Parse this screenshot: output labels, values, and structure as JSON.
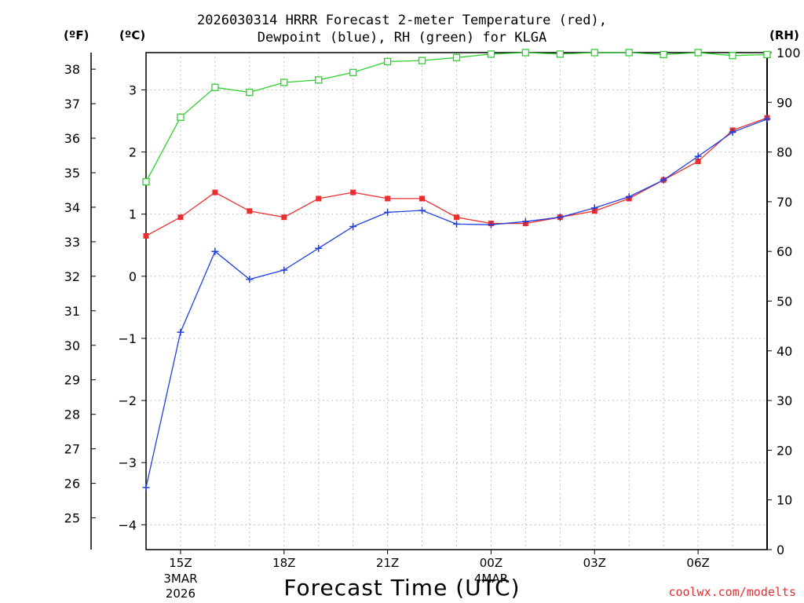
{
  "chart_data": {
    "type": "line",
    "title_line1": "2026030314 HRRR Forecast 2-meter Temperature (red),",
    "title_line2": "Dewpoint (blue), RH (green) for KLGA",
    "xlabel": "Forecast Time (UTC)",
    "credit": "coolwx.com/modelts",
    "units": {
      "fahrenheit": "(ºF)",
      "celsius": "(ºC)",
      "rh": "(RH)"
    },
    "x_hours": [
      14,
      15,
      16,
      17,
      18,
      19,
      20,
      21,
      22,
      23,
      24,
      25,
      26,
      27,
      28,
      29,
      30,
      31,
      32
    ],
    "xlim": [
      14,
      32
    ],
    "x_ticks": [
      {
        "hour": 15,
        "label": "15Z",
        "sub1": "3MAR",
        "sub2": "2026"
      },
      {
        "hour": 18,
        "label": "18Z",
        "sub1": "",
        "sub2": ""
      },
      {
        "hour": 21,
        "label": "21Z",
        "sub1": "",
        "sub2": ""
      },
      {
        "hour": 24,
        "label": "00Z",
        "sub1": "4MAR",
        "sub2": ""
      },
      {
        "hour": 27,
        "label": "03Z",
        "sub1": "",
        "sub2": ""
      },
      {
        "hour": 30,
        "label": "06Z",
        "sub1": "",
        "sub2": ""
      }
    ],
    "celsius_axis": {
      "ylim": [
        -4.4,
        3.6
      ],
      "ticks": [
        "-4",
        "-3",
        "-2",
        "-1",
        "0",
        "1",
        "2",
        "3"
      ]
    },
    "fahrenheit_axis": {
      "ticks": [
        "25",
        "26",
        "27",
        "28",
        "29",
        "30",
        "31",
        "32",
        "33",
        "34",
        "35",
        "36",
        "37",
        "38"
      ]
    },
    "rh_axis": {
      "ylim": [
        0,
        100
      ],
      "ticks": [
        "0",
        "10",
        "20",
        "30",
        "40",
        "50",
        "60",
        "70",
        "80",
        "90",
        "100"
      ]
    },
    "series": [
      {
        "name": "Temperature",
        "unit": "C",
        "color": "#e83030",
        "marker": "filled-square",
        "values": [
          0.65,
          0.95,
          1.35,
          1.05,
          0.95,
          1.25,
          1.35,
          1.25,
          1.25,
          0.95,
          0.85,
          0.85,
          0.95,
          1.05,
          1.25,
          1.55,
          1.85,
          2.35,
          2.55
        ]
      },
      {
        "name": "Dewpoint",
        "unit": "C",
        "color": "#2040e0",
        "marker": "plus",
        "values": [
          -3.4,
          -0.9,
          0.4,
          -0.05,
          0.1,
          0.45,
          0.8,
          1.03,
          1.06,
          0.84,
          0.83,
          0.88,
          0.95,
          1.1,
          1.28,
          1.55,
          1.93,
          2.32,
          2.53
        ]
      },
      {
        "name": "RH",
        "unit": "%",
        "color": "#30d030",
        "marker": "open-square",
        "values": [
          74,
          87,
          93,
          92,
          94,
          94.5,
          96,
          98.2,
          98.4,
          99,
          99.7,
          100,
          99.7,
          100,
          100,
          99.6,
          100,
          99.4,
          99.6
        ]
      }
    ]
  }
}
